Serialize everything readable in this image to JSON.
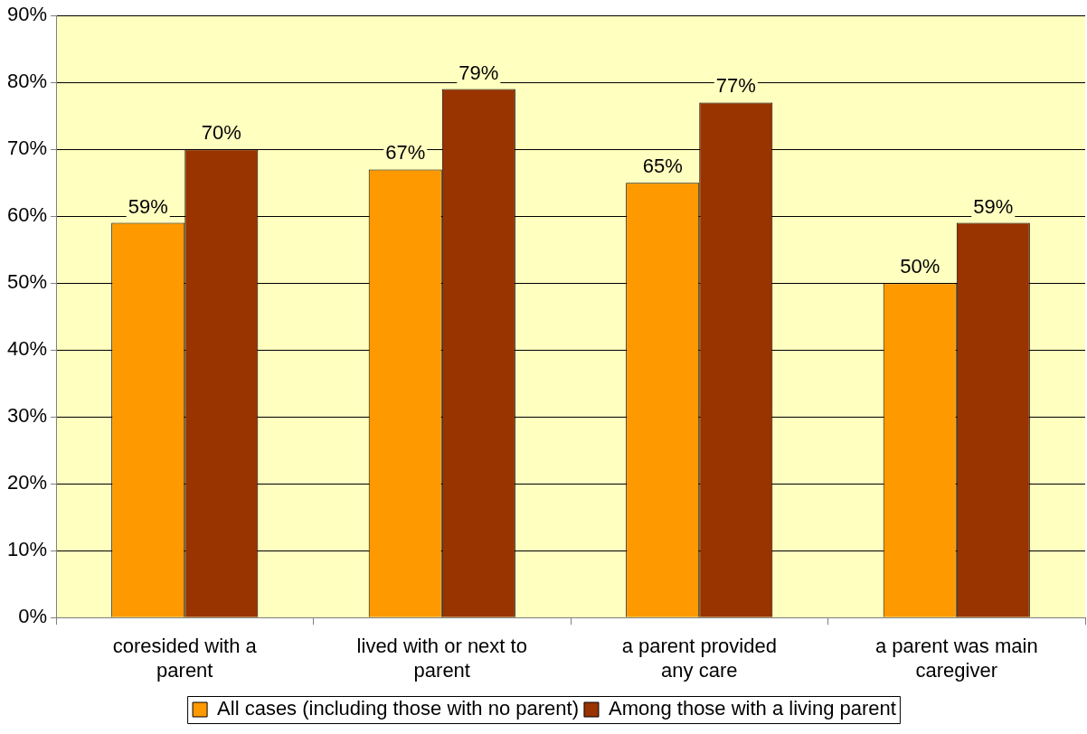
{
  "chart_data": {
    "type": "bar",
    "categories": [
      "coresided with a parent",
      "lived with or next to parent",
      "a parent provided any care",
      "a parent was main caregiver"
    ],
    "series": [
      {
        "name": "All cases (including those with no parent)",
        "color": "#ff9900",
        "values": [
          59,
          67,
          65,
          50
        ],
        "value_labels": [
          "59%",
          "67%",
          "65%",
          "50%"
        ]
      },
      {
        "name": "Among those with a living parent",
        "color": "#993300",
        "values": [
          70,
          79,
          77,
          59
        ],
        "value_labels": [
          "70%",
          "79%",
          "77%",
          "59%"
        ]
      }
    ],
    "ylim": [
      0,
      90
    ],
    "yticks": [
      {
        "value": 0,
        "label": "0%"
      },
      {
        "value": 10,
        "label": "10%"
      },
      {
        "value": 20,
        "label": "20%"
      },
      {
        "value": 30,
        "label": "30%"
      },
      {
        "value": 40,
        "label": "40%"
      },
      {
        "value": 50,
        "label": "50%"
      },
      {
        "value": 60,
        "label": "60%"
      },
      {
        "value": 70,
        "label": "70%"
      },
      {
        "value": 80,
        "label": "80%"
      },
      {
        "value": 90,
        "label": "90%"
      }
    ],
    "grid": "y",
    "legend": "bottom"
  }
}
